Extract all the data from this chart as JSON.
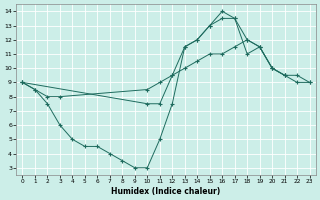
{
  "xlabel": "Humidex (Indice chaleur)",
  "bg_color": "#cceee8",
  "grid_color": "#ffffff",
  "line_color": "#1e6b5e",
  "xlim": [
    -0.5,
    23.5
  ],
  "ylim": [
    2.5,
    14.5
  ],
  "xticks": [
    0,
    1,
    2,
    3,
    4,
    5,
    6,
    7,
    8,
    9,
    10,
    11,
    12,
    13,
    14,
    15,
    16,
    17,
    18,
    19,
    20,
    21,
    22,
    23
  ],
  "yticks": [
    3,
    4,
    5,
    6,
    7,
    8,
    9,
    10,
    11,
    12,
    13,
    14
  ],
  "line1_x": [
    0,
    1,
    2,
    3,
    4,
    5,
    6,
    7,
    8,
    9,
    10,
    11,
    12,
    13,
    14,
    15,
    16,
    17,
    18,
    19,
    20,
    21
  ],
  "line1_y": [
    9,
    8.5,
    7.5,
    6,
    5,
    4.5,
    4.5,
    4,
    3.5,
    3,
    3,
    5,
    7.5,
    11.5,
    12,
    13,
    13.5,
    13.5,
    11,
    11.5,
    10,
    9.5
  ],
  "line2_x": [
    0,
    1,
    2,
    3,
    10,
    11,
    12,
    13,
    14,
    15,
    16,
    17,
    18,
    19,
    20,
    21,
    22,
    23
  ],
  "line2_y": [
    9,
    8.5,
    8.0,
    8.0,
    8.5,
    9.0,
    9.5,
    10.0,
    10.5,
    11.0,
    11.0,
    11.5,
    12.0,
    11.5,
    10.0,
    9.5,
    9.0,
    9.0
  ],
  "line3_x": [
    0,
    10,
    11,
    12,
    13,
    14,
    15,
    16,
    17,
    18,
    19,
    20,
    21,
    22,
    23
  ],
  "line3_y": [
    9,
    7.5,
    7.5,
    9.5,
    11.5,
    12.0,
    13.0,
    14.0,
    13.5,
    12.0,
    11.5,
    10.0,
    9.5,
    9.5,
    9.0
  ]
}
